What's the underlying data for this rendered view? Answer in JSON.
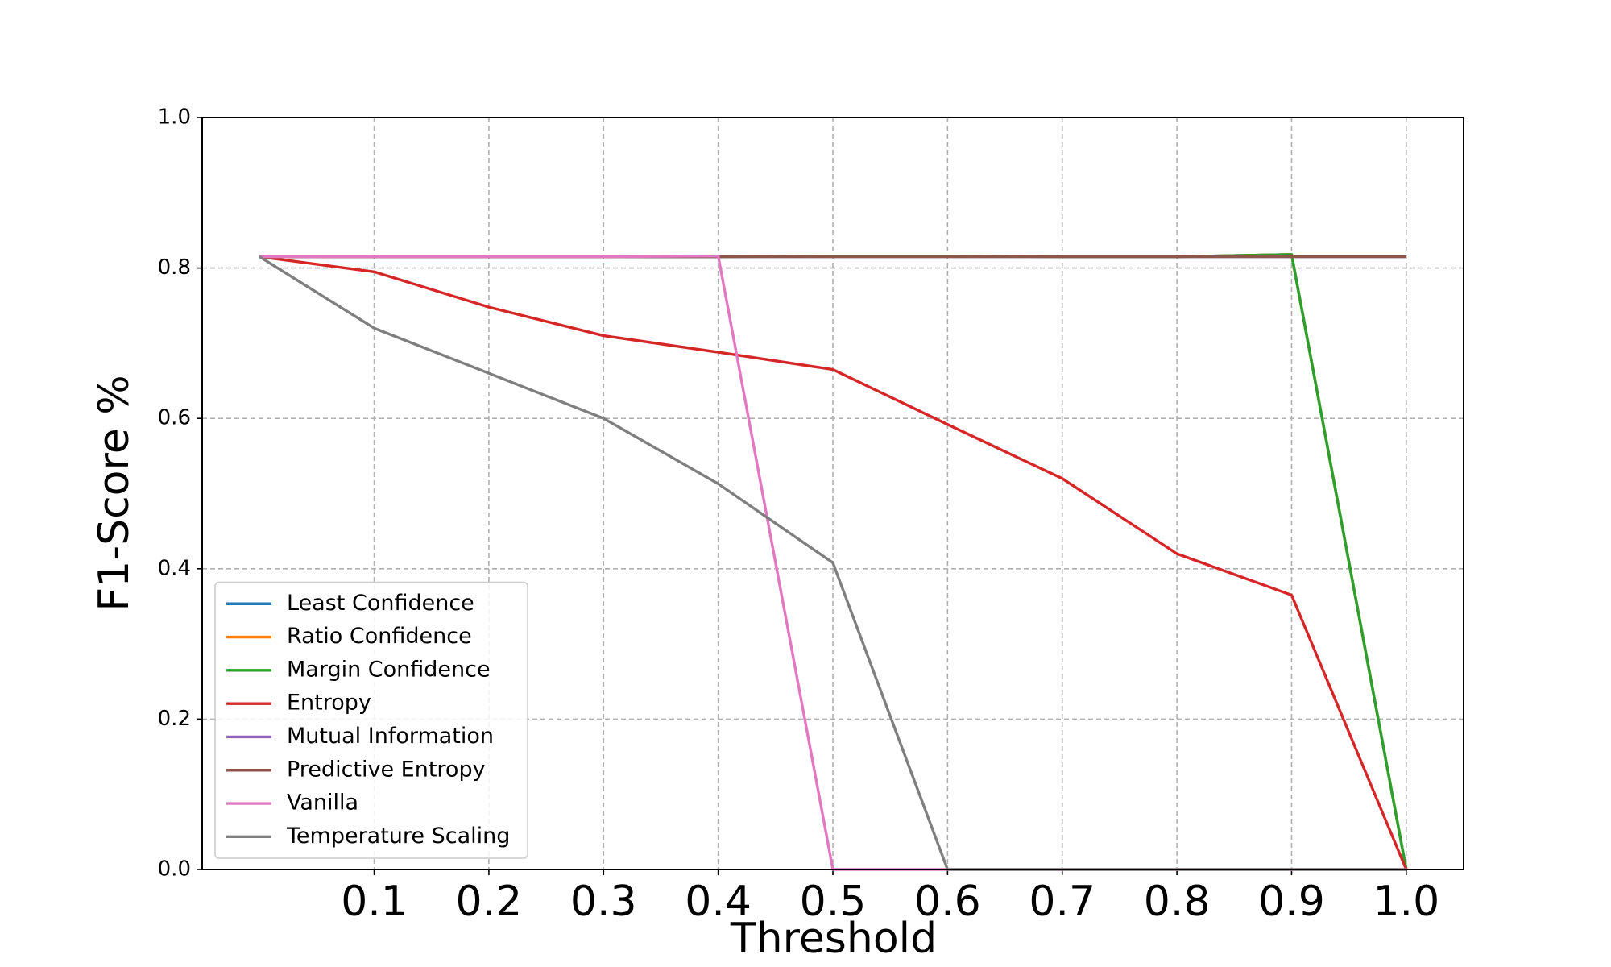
{
  "chart_data": {
    "type": "line",
    "xlabel": "Threshold",
    "ylabel": "F1-Score %",
    "x": [
      0,
      0.1,
      0.2,
      0.3,
      0.4,
      0.5,
      0.6,
      0.7,
      0.8,
      0.9,
      1.0
    ],
    "series": [
      {
        "name": "Least Confidence",
        "color": "#1f77b4",
        "values": [
          0.815,
          0.815,
          0.815,
          0.815,
          0.815,
          0.816,
          0.816,
          0.815,
          0.815,
          0.818,
          0
        ]
      },
      {
        "name": "Ratio Confidence",
        "color": "#ff7f0e",
        "values": [
          0.815,
          0.815,
          0.815,
          0.815,
          0.815,
          0.816,
          0.816,
          0.815,
          0.815,
          0.818,
          0
        ]
      },
      {
        "name": "Margin Confidence",
        "color": "#2ca02c",
        "values": [
          0.815,
          0.815,
          0.815,
          0.815,
          0.815,
          0.816,
          0.816,
          0.815,
          0.815,
          0.818,
          0
        ]
      },
      {
        "name": "Entropy",
        "color": "#d62728",
        "values": [
          0.815,
          0.795,
          0.748,
          0.71,
          0.688,
          0.665,
          0.592,
          0.52,
          0.42,
          0.365,
          0
        ]
      },
      {
        "name": "Mutual Information",
        "color": "#9467bd",
        "values": [
          0.815,
          0.815,
          0.815,
          0.815,
          0.815,
          0.815,
          0.815,
          0.815,
          0.815,
          0.815,
          0.815
        ]
      },
      {
        "name": "Predictive Entropy",
        "color": "#8c564b",
        "values": [
          0.815,
          0.815,
          0.815,
          0.815,
          0.815,
          0.815,
          0.815,
          0.815,
          0.815,
          0.815,
          0.815
        ]
      },
      {
        "name": "Vanilla",
        "color": "#e377c2",
        "values": [
          0.815,
          0.815,
          0.815,
          0.815,
          0.816,
          0,
          0,
          0,
          0,
          0,
          0
        ]
      },
      {
        "name": "Temperature Scaling",
        "color": "#7f7f7f",
        "values": [
          0.815,
          0.72,
          0.66,
          0.6,
          0.513,
          0.408,
          0,
          0,
          0,
          0,
          0
        ]
      }
    ],
    "xlim": [
      -0.05,
      1.05
    ],
    "xticks": [
      0.1,
      0.2,
      0.3,
      0.4,
      0.5,
      0.6,
      0.7,
      0.8,
      0.9,
      {
        "value": 1.0,
        "label": "1.0"
      }
    ],
    "ylim": [
      0,
      1
    ],
    "yticks": [
      {
        "value": 0,
        "label": "0.0"
      },
      0.2,
      0.4,
      0.6,
      0.8,
      {
        "value": 1.0,
        "label": "1.0"
      }
    ],
    "grid": true,
    "legend": "lower left"
  }
}
